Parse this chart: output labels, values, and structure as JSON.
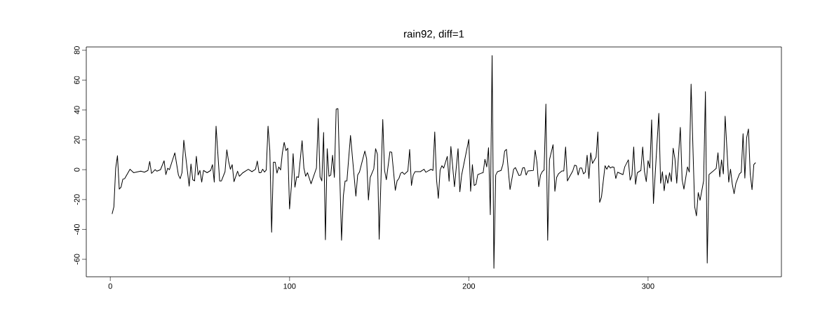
{
  "chart_data": {
    "type": "line",
    "title": "rain92, diff=1",
    "color": "#000000",
    "x": [
      1,
      2,
      3,
      4,
      5,
      6,
      7,
      8,
      11,
      13,
      17,
      19,
      21,
      22,
      23,
      25,
      26,
      28,
      30,
      31,
      32,
      33,
      36,
      38,
      39,
      40,
      41,
      44,
      45,
      46,
      47,
      48,
      49,
      50,
      51,
      52,
      54,
      56,
      57,
      58,
      59,
      61,
      62,
      64,
      65,
      66,
      67,
      68,
      69,
      71,
      72,
      74,
      77,
      79,
      81,
      82,
      83,
      84,
      85,
      86,
      87,
      88,
      89,
      90,
      91,
      92,
      93,
      94,
      95,
      96,
      97,
      98,
      99,
      100,
      101,
      102,
      103,
      104,
      105,
      107,
      108,
      109,
      110,
      112,
      115,
      116,
      117,
      118,
      119,
      120,
      121,
      122,
      123,
      124,
      125,
      126,
      127,
      129,
      130,
      131,
      132,
      134,
      137,
      138,
      139,
      142,
      143,
      144,
      145,
      147,
      148,
      149,
      150,
      152,
      153,
      154,
      156,
      157,
      159,
      160,
      161,
      162,
      163,
      164,
      166,
      167,
      168,
      169,
      170,
      173,
      175,
      176,
      179,
      180,
      181,
      182,
      183,
      184,
      185,
      186,
      188,
      189,
      190,
      192,
      194,
      195,
      196,
      200,
      201,
      202,
      203,
      204,
      205,
      207,
      208,
      209,
      210,
      211,
      212,
      213,
      214,
      215,
      216,
      218,
      219,
      220,
      221,
      223,
      225,
      226,
      228,
      229,
      230,
      231,
      232,
      233,
      236,
      237,
      238,
      239,
      240,
      241,
      242,
      243,
      244,
      245,
      247,
      248,
      249,
      250,
      252,
      253,
      254,
      255,
      256,
      258,
      259,
      260,
      261,
      262,
      263,
      264,
      265,
      266,
      267,
      268,
      269,
      271,
      272,
      273,
      274,
      276,
      277,
      278,
      279,
      280,
      281,
      282,
      283,
      286,
      287,
      289,
      290,
      291,
      292,
      293,
      294,
      296,
      297,
      298,
      299,
      300,
      301,
      302,
      303,
      306,
      307,
      308,
      309,
      310,
      311,
      312,
      313,
      314,
      315,
      316,
      318,
      319,
      320,
      322,
      323,
      324,
      326,
      327,
      328,
      329,
      331,
      332,
      333,
      334,
      336,
      338,
      339,
      340,
      341,
      342,
      343,
      345,
      346,
      347,
      348,
      349,
      351,
      352,
      353,
      354,
      355,
      356,
      357,
      358,
      359,
      360
    ],
    "values": [
      -29.7,
      -24.8,
      1,
      9.4,
      -13,
      -11.7,
      -6.3,
      -6,
      0.3,
      -2,
      -1,
      -1.7,
      -0.5,
      5.5,
      -2.5,
      0,
      -1,
      0,
      6,
      -3.3,
      1,
      0,
      11.3,
      -3.6,
      -6,
      -2,
      19.8,
      -11,
      3.8,
      -6.7,
      -7.5,
      9,
      -3.6,
      -0.5,
      -8.3,
      -0.5,
      -2,
      -0.5,
      3.4,
      -8.3,
      29.2,
      -7.5,
      -7.5,
      -1.3,
      13.3,
      5.5,
      0.3,
      3.4,
      -8,
      -1,
      -4.4,
      -2,
      0.3,
      -1.3,
      0.3,
      5.8,
      -2,
      -2,
      0.3,
      -1.6,
      -0.2,
      29.2,
      12.8,
      -41.9,
      5,
      5,
      -2.3,
      1.9,
      -0.2,
      11.3,
      18.3,
      12.8,
      14.4,
      -26.3,
      -11.4,
      10.8,
      -11.7,
      -4.7,
      -5.2,
      19.4,
      1.1,
      -4.4,
      -2,
      -9.4,
      1.1,
      34.4,
      -4.7,
      -7.5,
      25,
      -47,
      14.1,
      -4.4,
      -3.6,
      9.7,
      -5.2,
      40.6,
      40.9,
      -47.3,
      -17.7,
      -7.5,
      -7.5,
      23,
      -17.7,
      -3.6,
      -1.6,
      12.5,
      7.3,
      -20.3,
      -5.2,
      0.6,
      14.1,
      10.5,
      -46.6,
      33.6,
      -0.5,
      -6.7,
      12,
      11.7,
      -13.8,
      -7.5,
      -5.9,
      -2.3,
      -1.7,
      -3.1,
      -0.9,
      13.6,
      -10.6,
      -3.6,
      -1.3,
      -1.3,
      0.3,
      -1.7,
      0.3,
      -0.5,
      25.3,
      -6.7,
      -19.2,
      -0.2,
      2.7,
      1.1,
      8.9,
      -7.8,
      15.6,
      -11.4,
      14.1,
      -14.8,
      -3.6,
      20.3,
      -14.5,
      3.4,
      -10.6,
      -9.8,
      -3.3,
      -2.3,
      -2,
      7,
      1.9,
      14.7,
      -30.2,
      76.4,
      -66.1,
      -3.6,
      -1.3,
      -0.5,
      3.4,
      12.5,
      13.6,
      -13.3,
      0.3,
      1.4,
      -3.9,
      -3.6,
      1.1,
      1.4,
      -3.6,
      -0.8,
      -0.5,
      13.1,
      5,
      -11.4,
      -3.6,
      -1.3,
      -0.2,
      44,
      -47.3,
      6.6,
      16.7,
      -14.5,
      -5.2,
      -2.8,
      -0.8,
      -0.8,
      15.2,
      -7.5,
      -5.2,
      -0.8,
      3,
      2.7,
      -3.6,
      1.1,
      1.1,
      -2.8,
      -1.6,
      9.7,
      -5.9,
      11.3,
      4.2,
      8.4,
      25.3,
      -21.9,
      -18.4,
      2.7,
      0.3,
      2.7,
      1.1,
      1.9,
      1.6,
      -5.9,
      -1.7,
      -3.3,
      1.9,
      6.6,
      -7,
      -3.6,
      15.2,
      -9.8,
      -2,
      -0.5,
      15.2,
      -1.3,
      -8,
      6.1,
      1.1,
      33.4,
      -22.7,
      37.8,
      -9.1,
      -1.3,
      -14.1,
      -3.6,
      -9.1,
      -2,
      -8,
      14.4,
      7.3,
      -9.1,
      28.4,
      -6.7,
      -13,
      1.9,
      -1.6,
      57.3,
      -24.7,
      -30.9,
      -15.3,
      -20.5,
      -7.5,
      52.3,
      -62.5,
      -3.3,
      -1.3,
      0.8,
      11.3,
      -4.8,
      6.6,
      -2.8,
      35.9,
      -8.3,
      0.3,
      -9.8,
      -16.1,
      -9.1,
      -2.8,
      -1.7,
      24.1,
      -5.6,
      21.4,
      27.3,
      -2.8,
      -13.4,
      3.4,
      4.7
    ],
    "xlim": [
      -13.4,
      374.4
    ],
    "ylim": [
      -71.7,
      82.2
    ],
    "xticks": [
      0,
      100,
      200,
      300
    ],
    "yticks": [
      -60,
      -40,
      -20,
      0,
      20,
      40,
      60,
      80
    ]
  }
}
